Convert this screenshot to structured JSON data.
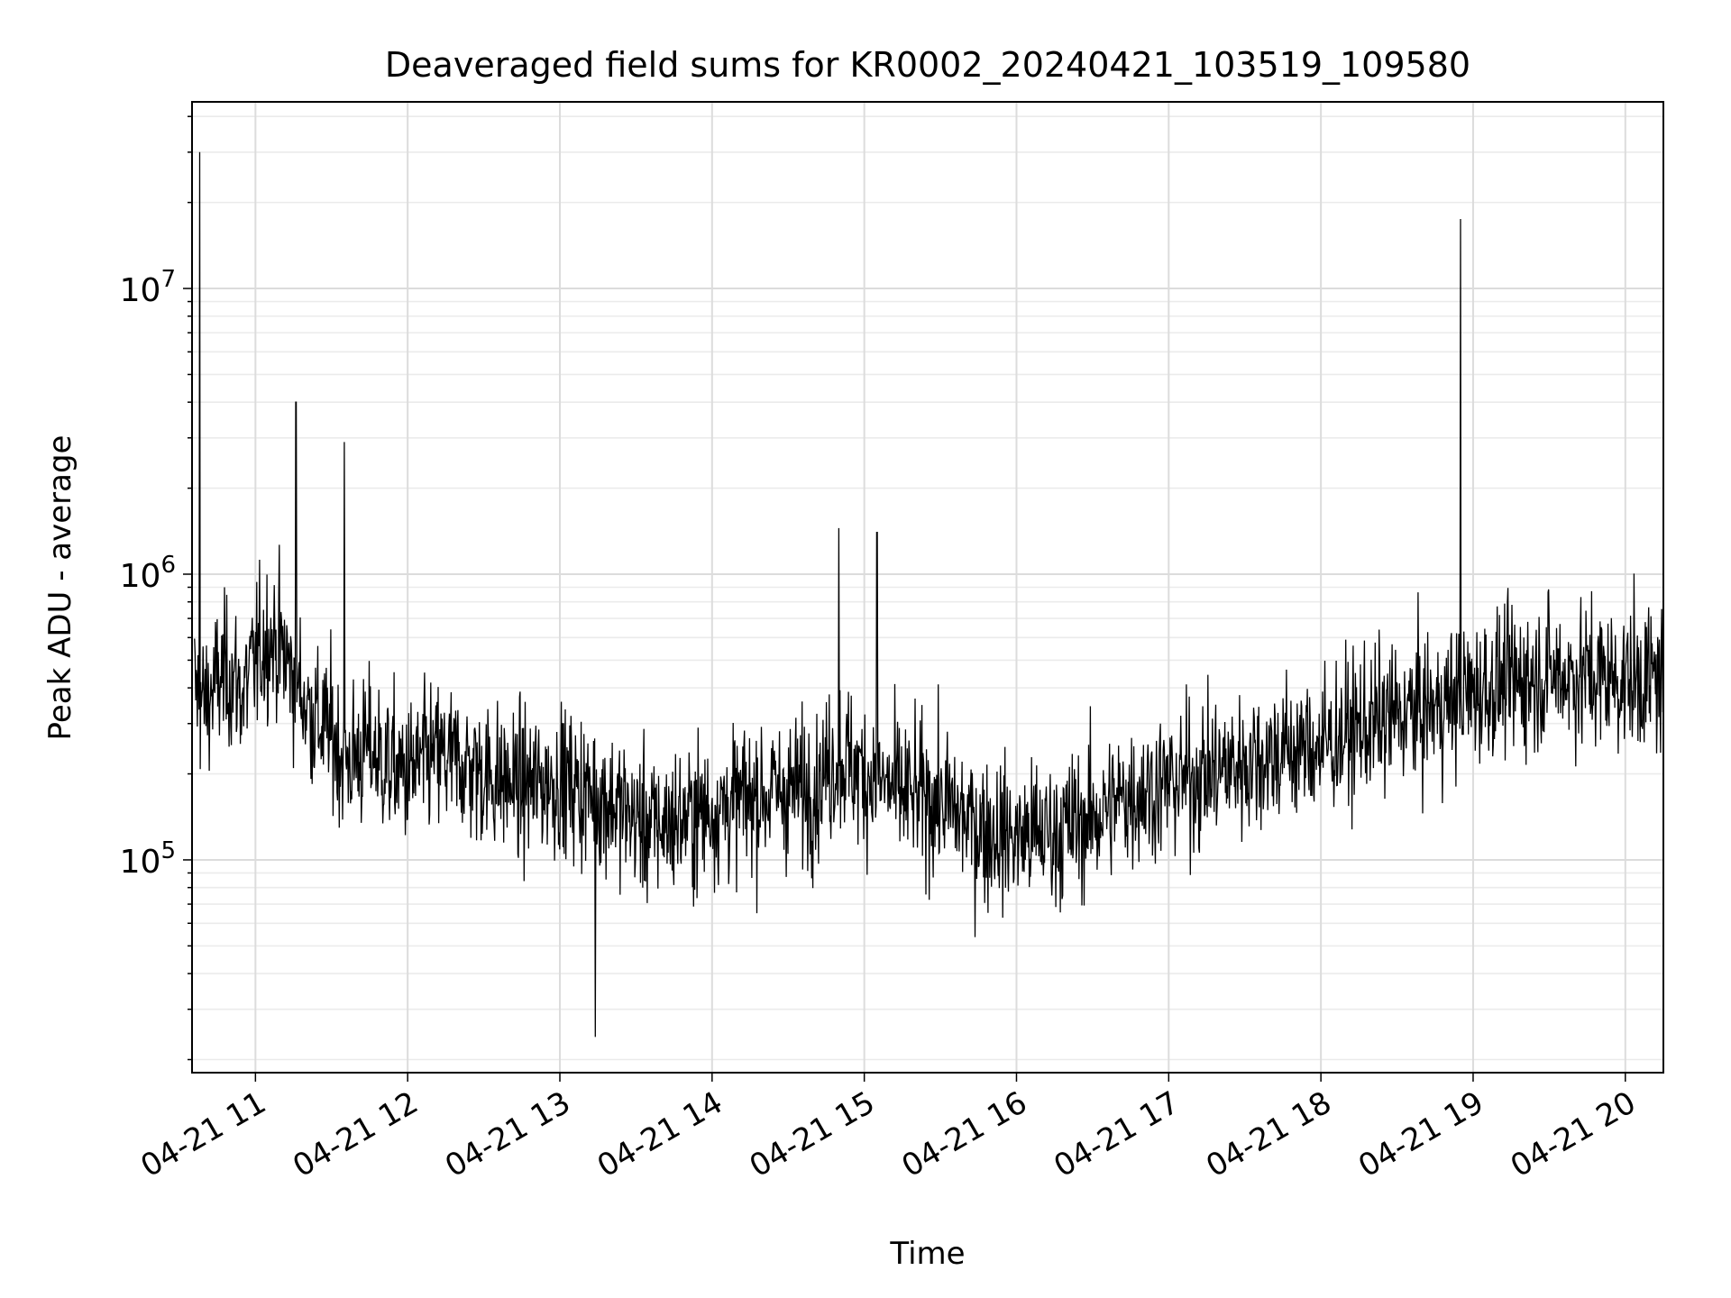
{
  "chart_data": {
    "type": "line",
    "title": "Deaveraged field sums for KR0002_20240421_103519_109580",
    "xlabel": "Time",
    "ylabel": "Peak ADU - average",
    "x_scale": "time",
    "y_scale": "log",
    "xlim": [
      "2024-04-21T10:35",
      "2024-04-21T20:15"
    ],
    "ylim": [
      18000,
      45000000
    ],
    "grid": "major and minor, light gray",
    "legend": "none",
    "x_ticks": [
      {
        "t": "2024-04-21T11:00",
        "label": "04-21 11"
      },
      {
        "t": "2024-04-21T12:00",
        "label": "04-21 12"
      },
      {
        "t": "2024-04-21T13:00",
        "label": "04-21 13"
      },
      {
        "t": "2024-04-21T14:00",
        "label": "04-21 14"
      },
      {
        "t": "2024-04-21T15:00",
        "label": "04-21 15"
      },
      {
        "t": "2024-04-21T16:00",
        "label": "04-21 16"
      },
      {
        "t": "2024-04-21T17:00",
        "label": "04-21 17"
      },
      {
        "t": "2024-04-21T18:00",
        "label": "04-21 18"
      },
      {
        "t": "2024-04-21T19:00",
        "label": "04-21 19"
      },
      {
        "t": "2024-04-21T20:00",
        "label": "04-21 20"
      }
    ],
    "y_ticks": [
      {
        "v": 100000,
        "label": "10^5"
      },
      {
        "v": 1000000,
        "label": "10^6"
      },
      {
        "v": 10000000,
        "label": "10^7"
      }
    ],
    "line_color": "#000000",
    "series": [
      {
        "x": [
          "2024-04-21T10:36",
          "2024-04-21T10:40",
          "2024-04-21T10:45",
          "2024-04-21T10:50",
          "2024-04-21T10:55",
          "2024-04-21T11:00",
          "2024-04-21T11:05",
          "2024-04-21T11:10",
          "2024-04-21T11:15",
          "2024-04-21T11:20",
          "2024-04-21T11:25",
          "2024-04-21T11:30",
          "2024-04-21T11:35",
          "2024-04-21T11:40",
          "2024-04-21T11:45",
          "2024-04-21T11:50",
          "2024-04-21T12:00",
          "2024-04-21T12:10",
          "2024-04-21T12:20",
          "2024-04-21T12:30",
          "2024-04-21T12:45",
          "2024-04-21T13:00",
          "2024-04-21T13:12",
          "2024-04-21T13:20",
          "2024-04-21T13:35",
          "2024-04-21T13:50",
          "2024-04-21T14:00",
          "2024-04-21T14:20",
          "2024-04-21T14:40",
          "2024-04-21T14:50",
          "2024-04-21T15:00",
          "2024-04-21T15:15",
          "2024-04-21T15:30",
          "2024-04-21T15:45",
          "2024-04-21T16:00",
          "2024-04-21T16:15",
          "2024-04-21T16:30",
          "2024-04-21T16:45",
          "2024-04-21T17:00",
          "2024-04-21T17:15",
          "2024-04-21T17:30",
          "2024-04-21T17:45",
          "2024-04-21T18:00",
          "2024-04-21T18:15",
          "2024-04-21T18:30",
          "2024-04-21T18:45",
          "2024-04-21T18:55",
          "2024-04-21T19:00",
          "2024-04-21T19:15",
          "2024-04-21T19:30",
          "2024-04-21T19:45",
          "2024-04-21T20:00",
          "2024-04-21T20:15"
        ],
        "y": [
          400000,
          350000,
          420000,
          450000,
          380000,
          500000,
          600000,
          550000,
          450000,
          350000,
          300000,
          280000,
          220000,
          230000,
          250000,
          220000,
          200000,
          230000,
          220000,
          200000,
          180000,
          190000,
          170000,
          160000,
          130000,
          140000,
          150000,
          170000,
          180000,
          230000,
          200000,
          170000,
          160000,
          130000,
          120000,
          125000,
          140000,
          170000,
          185000,
          200000,
          220000,
          240000,
          250000,
          290000,
          320000,
          340000,
          370000,
          390000,
          420000,
          450000,
          440000,
          430000,
          430000
        ]
      }
    ],
    "spikes": [
      {
        "t": "2024-04-21T10:38",
        "v": 30000000
      },
      {
        "t": "2024-04-21T11:16",
        "v": 4000000
      },
      {
        "t": "2024-04-21T11:35",
        "v": 2900000
      },
      {
        "t": "2024-04-21T13:14",
        "v": 24000
      },
      {
        "t": "2024-04-21T14:50",
        "v": 1450000
      },
      {
        "t": "2024-04-21T15:05",
        "v": 1400000
      },
      {
        "t": "2024-04-21T18:55",
        "v": 17500000
      }
    ]
  }
}
